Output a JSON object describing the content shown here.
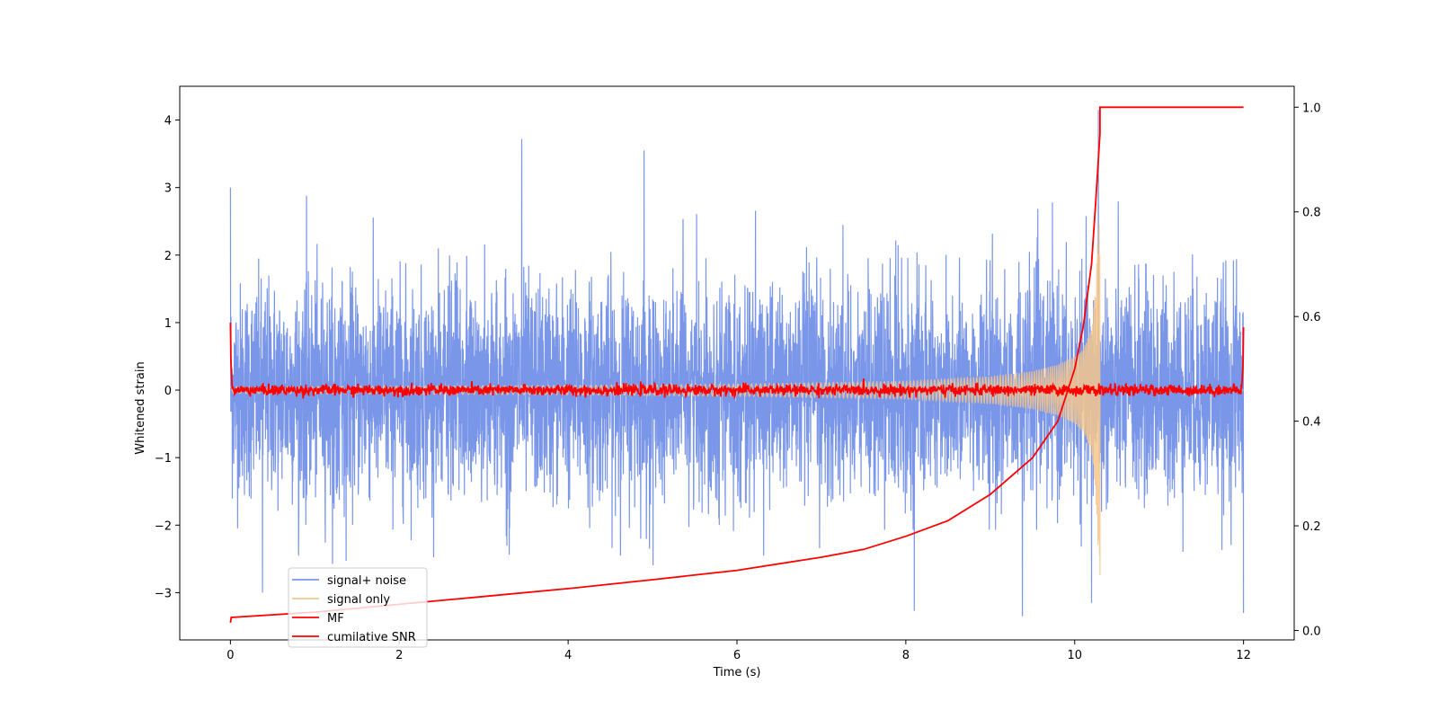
{
  "chart_data": {
    "type": "line",
    "title": "",
    "xlabel": "Time (s)",
    "ylabel": "Whitened strain",
    "y2label": "",
    "xlim": [
      -0.6,
      12.6
    ],
    "ylim": [
      -3.7,
      4.5
    ],
    "y2lim": [
      -0.018,
      1.04
    ],
    "xticks": [
      0,
      2,
      4,
      6,
      8,
      10,
      12
    ],
    "xtick_labels": [
      "0",
      "2",
      "4",
      "6",
      "8",
      "10",
      "12"
    ],
    "yticks": [
      -3,
      -2,
      -1,
      0,
      1,
      2,
      3,
      4
    ],
    "ytick_labels": [
      "−3",
      "−2",
      "−1",
      "0",
      "1",
      "2",
      "3",
      "4"
    ],
    "y2ticks": [
      0.0,
      0.2,
      0.4,
      0.6,
      0.8,
      1.0
    ],
    "y2tick_labels": [
      "0.0",
      "0.2",
      "0.4",
      "0.6",
      "0.8",
      "1.0"
    ],
    "grid": false,
    "legend_position": "lower-left",
    "series": [
      {
        "name": "signal+ noise",
        "color": "#7a96e8",
        "axis": "left",
        "kind": "noise",
        "t_start": 0,
        "t_end": 12,
        "std": 0.78,
        "notable_peaks": [
          {
            "t": 0.0,
            "y": 3.0
          },
          {
            "t": 3.45,
            "y": 3.72
          },
          {
            "t": 4.9,
            "y": 3.55
          },
          {
            "t": 10.28,
            "y": 4.15
          },
          {
            "t": 0.38,
            "y": -3.0
          },
          {
            "t": 8.1,
            "y": -3.27
          },
          {
            "t": 9.38,
            "y": -3.35
          },
          {
            "t": 10.2,
            "y": -3.15
          },
          {
            "t": 12.0,
            "y": -3.3
          }
        ]
      },
      {
        "name": "signal only",
        "color": "#f5c78c",
        "axis": "left",
        "kind": "chirp",
        "t_start": 0,
        "t_merger": 10.3,
        "envelope_t": [
          0,
          4,
          6,
          8,
          9,
          9.5,
          9.8,
          10.0,
          10.1,
          10.2,
          10.25,
          10.3
        ],
        "envelope_amp": [
          0.05,
          0.07,
          0.09,
          0.13,
          0.2,
          0.28,
          0.38,
          0.5,
          0.62,
          0.9,
          1.6,
          3.1
        ]
      },
      {
        "name": "MF",
        "color": "#ff0000",
        "axis": "left",
        "kind": "noise",
        "t_start": 0,
        "t_end": 12,
        "std": 0.04,
        "start_value": 1.0,
        "end_value": 0.93
      },
      {
        "name": "cumilative SNR",
        "color": "#ff0000",
        "axis": "right",
        "kind": "line",
        "x": [
          0,
          0.01,
          1,
          2,
          3,
          4,
          5,
          6,
          7,
          7.5,
          8,
          8.5,
          9,
          9.5,
          9.8,
          10.0,
          10.1,
          10.2,
          10.25,
          10.3,
          10.3,
          12.0
        ],
        "y": [
          0.015,
          0.025,
          0.035,
          0.05,
          0.065,
          0.08,
          0.097,
          0.115,
          0.14,
          0.155,
          0.18,
          0.21,
          0.26,
          0.33,
          0.4,
          0.5,
          0.58,
          0.7,
          0.82,
          0.95,
          1.0,
          1.0
        ]
      }
    ]
  }
}
